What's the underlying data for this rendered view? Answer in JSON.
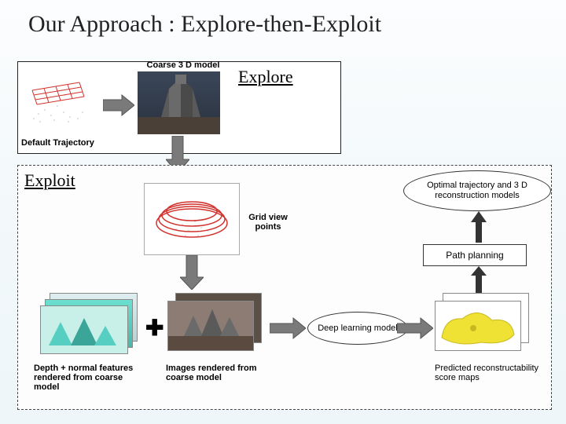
{
  "title": "Our Approach : Explore-then-Exploit",
  "explore_section_label": "Explore",
  "coarse_model_label": "Coarse 3 D model",
  "default_traj_label": "Default Trajectory",
  "exploit_section_label": "Exploit",
  "grid_view_points_label": "Grid view\npoints",
  "optimal_ellipse": "Optimal trajectory and 3 D reconstruction models",
  "path_planning_label": "Path planning",
  "deep_learning_ellipse": "Deep learning model",
  "depth_normal_label": "Depth + normal features rendered from coarse model",
  "images_rendered_label": "Images rendered from coarse model",
  "predicted_label": "Predicted reconstructability score maps",
  "colors": {
    "red": "#d2322d",
    "yellow": "#f0e135",
    "gray_arrow": "#7a7a7a",
    "render_bg": "#8c7c74",
    "teal": "#6ce0d0",
    "point_gray": "#bfbfbf"
  }
}
